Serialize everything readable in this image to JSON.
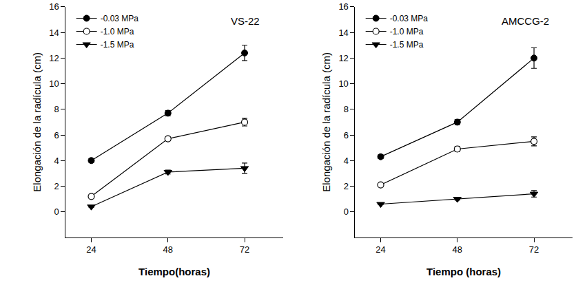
{
  "chart_data": [
    {
      "type": "line",
      "title": "VS-22",
      "x": [
        24,
        48,
        72
      ],
      "xlim": [
        16,
        84
      ],
      "xticks": [
        24,
        48,
        72
      ],
      "ylim": [
        -2,
        16
      ],
      "yticks": [
        0,
        2,
        4,
        6,
        8,
        10,
        12,
        14,
        16
      ],
      "x_label": "Tiempo(horas)",
      "y_label": "Elongación de la radícula (cm)",
      "legend": "upper left",
      "series": [
        {
          "name": "-0.03 MPa",
          "color": "#000000",
          "marker": "filled_circle",
          "values": [
            4.0,
            7.7,
            12.4
          ],
          "error": [
            0.15,
            0.2,
            0.6
          ]
        },
        {
          "name": "-1.0 MPa",
          "color": "#000000",
          "marker": "open_circle",
          "values": [
            1.2,
            5.7,
            7.0
          ],
          "error": [
            0.1,
            0.15,
            0.3
          ]
        },
        {
          "name": "-1.5 MPa",
          "color": "#000000",
          "marker": "filled_triangle_down",
          "values": [
            0.4,
            3.1,
            3.4
          ],
          "error": [
            0.05,
            0.15,
            0.4
          ]
        }
      ]
    },
    {
      "type": "line",
      "title": "AMCCG-2",
      "x": [
        24,
        48,
        72
      ],
      "xlim": [
        16,
        84
      ],
      "xticks": [
        24,
        48,
        72
      ],
      "ylim": [
        -2,
        16
      ],
      "yticks": [
        0,
        2,
        4,
        6,
        8,
        10,
        12,
        14,
        16
      ],
      "x_label": "Tiempo (horas)",
      "y_label": "Elongación de la radícula (cm)",
      "legend": "upper left",
      "series": [
        {
          "name": "-0.03 MPa",
          "color": "#000000",
          "marker": "filled_circle",
          "values": [
            4.3,
            7.0,
            12.0
          ],
          "error": [
            0.15,
            0.2,
            0.8
          ]
        },
        {
          "name": "-1.0 MPa",
          "color": "#000000",
          "marker": "open_circle",
          "values": [
            2.1,
            4.9,
            5.5
          ],
          "error": [
            0.1,
            0.2,
            0.35
          ]
        },
        {
          "name": "-1.5 MPa",
          "color": "#000000",
          "marker": "filled_triangle_down",
          "values": [
            0.6,
            1.0,
            1.4
          ],
          "error": [
            0.05,
            0.08,
            0.25
          ]
        }
      ]
    }
  ]
}
